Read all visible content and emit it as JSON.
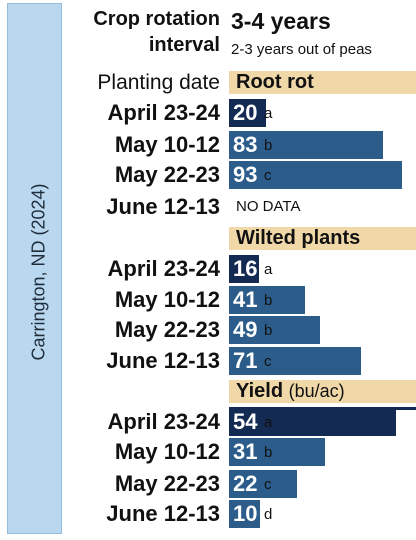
{
  "location_label": "Carrington, ND (2024)",
  "crop_rotation": {
    "label": "Crop rotation interval",
    "label_line1": "Crop rotation",
    "label_line2": "interval",
    "value": "3-4 years",
    "subvalue": "2-3 years out of peas"
  },
  "column_header": "Planting date",
  "chart_data": [
    {
      "type": "bar",
      "title": "Root rot",
      "unit": "",
      "categories": [
        "April 23-24",
        "May 10-12",
        "May 22-23",
        "June 12-13"
      ],
      "values": [
        20,
        83,
        93,
        null
      ],
      "value_labels": [
        "20",
        "83",
        "93",
        ""
      ],
      "significance_letters": [
        "a",
        "b",
        "c",
        ""
      ],
      "missing_label": "NO DATA",
      "xlim": [
        0,
        100
      ],
      "colors": [
        "#132a52",
        "#2b5c8a",
        "#2b5c8a",
        "#2b5c8a"
      ]
    },
    {
      "type": "bar",
      "title": "Wilted plants",
      "unit": "",
      "categories": [
        "April 23-24",
        "May 10-12",
        "May 22-23",
        "June 12-13"
      ],
      "values": [
        16,
        41,
        49,
        71
      ],
      "value_labels": [
        "16",
        "41",
        "49",
        "71"
      ],
      "significance_letters": [
        "a",
        "b",
        "b",
        "c"
      ],
      "xlim": [
        0,
        100
      ],
      "colors": [
        "#132a52",
        "#2b5c8a",
        "#2b5c8a",
        "#2b5c8a"
      ]
    },
    {
      "type": "bar",
      "title": "Yield",
      "unit": "(bu/ac)",
      "categories": [
        "April 23-24",
        "May 10-12",
        "May 22-23",
        "June 12-13"
      ],
      "values": [
        54,
        31,
        22,
        10
      ],
      "value_labels": [
        "54",
        "31",
        "22",
        "10"
      ],
      "significance_letters": [
        "a",
        "b",
        "c",
        "d"
      ],
      "xlim": [
        0,
        60
      ],
      "colors": [
        "#132a52",
        "#2b5c8a",
        "#2b5c8a",
        "#2b5c8a"
      ]
    }
  ]
}
